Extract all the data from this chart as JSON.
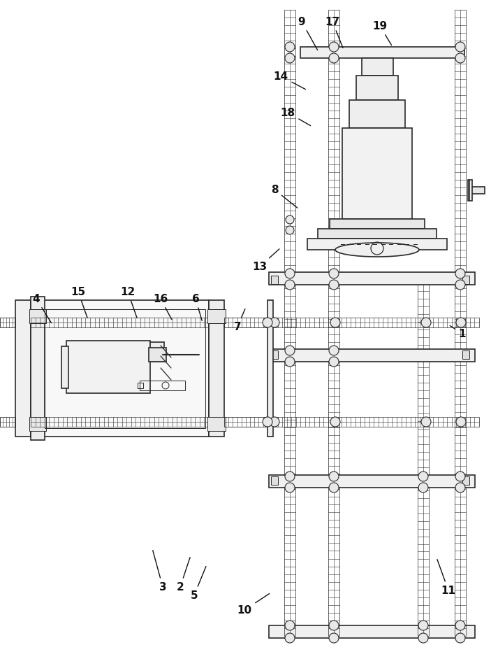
{
  "bg_color": "#ffffff",
  "line_color": "#2a2a2a",
  "line_width": 1.2,
  "thin_lw": 0.7,
  "label_data": [
    [
      "1",
      662,
      478,
      642,
      465
    ],
    [
      "2",
      258,
      840,
      273,
      795
    ],
    [
      "3",
      233,
      840,
      218,
      785
    ],
    [
      "4",
      52,
      428,
      75,
      465
    ],
    [
      "5",
      278,
      852,
      296,
      808
    ],
    [
      "6",
      280,
      428,
      290,
      462
    ],
    [
      "7",
      340,
      468,
      352,
      440
    ],
    [
      "8",
      393,
      272,
      428,
      300
    ],
    [
      "9",
      432,
      32,
      456,
      75
    ],
    [
      "10",
      350,
      873,
      388,
      848
    ],
    [
      "11",
      642,
      845,
      625,
      798
    ],
    [
      "12",
      183,
      418,
      197,
      458
    ],
    [
      "13",
      372,
      382,
      402,
      355
    ],
    [
      "14",
      402,
      110,
      440,
      130
    ],
    [
      "15",
      112,
      418,
      126,
      458
    ],
    [
      "16",
      230,
      428,
      247,
      460
    ],
    [
      "17",
      476,
      32,
      492,
      72
    ],
    [
      "18",
      412,
      162,
      447,
      182
    ],
    [
      "19",
      544,
      38,
      562,
      68
    ]
  ]
}
